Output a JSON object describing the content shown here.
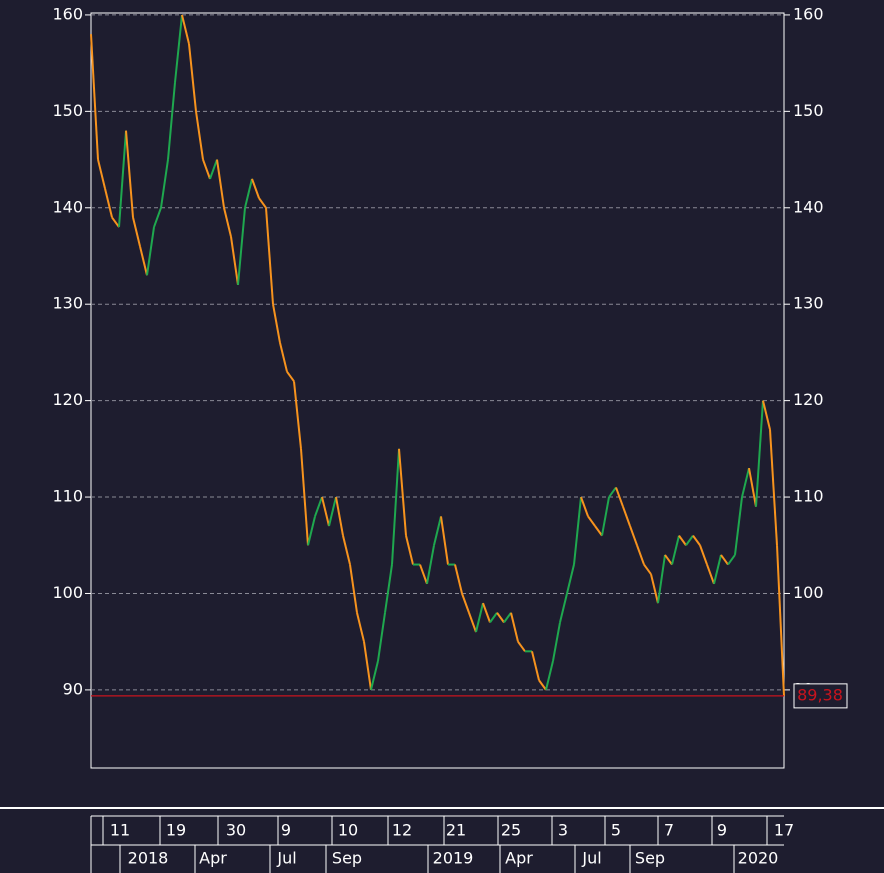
{
  "chart_data": {
    "type": "price-line",
    "values": [
      158,
      145,
      142,
      139,
      138,
      148,
      139,
      136,
      133,
      138,
      140,
      145,
      153,
      160,
      157,
      150,
      145,
      143,
      145,
      140,
      137,
      132,
      140,
      143,
      141,
      140,
      130,
      126,
      123,
      122,
      115,
      105,
      108,
      110,
      107,
      110,
      106,
      103,
      98,
      95,
      90,
      93,
      98,
      103,
      115,
      106,
      103,
      103,
      101,
      105,
      108,
      103,
      103,
      100,
      98,
      96,
      99,
      97,
      98,
      97,
      98,
      95,
      94,
      94,
      91,
      90,
      93,
      97,
      100,
      103,
      110,
      108,
      107,
      106,
      110,
      111,
      109,
      107,
      105,
      103,
      102,
      99,
      104,
      103,
      106,
      105,
      106,
      105,
      103,
      101,
      104,
      103,
      104,
      110,
      113,
      109,
      120,
      117,
      105,
      89.38
    ],
    "last_value_label": "89,38",
    "up_color": "#1fa84f",
    "down_color": "#f7931e",
    "last_line_color": "#c8141e",
    "ylim": [
      81.9,
      160.2
    ],
    "yticks": [
      90,
      100,
      110,
      120,
      130,
      140,
      150,
      160
    ],
    "grid": true,
    "time_axis": {
      "row1": [
        "11",
        "19",
        "30",
        "9",
        "10",
        "12",
        "21",
        "25",
        "3",
        "5",
        "7",
        "9",
        "17"
      ],
      "row2": [
        "2018",
        "Apr",
        "Jul",
        "Sep",
        "2019",
        "Apr",
        "Jul",
        "Sep",
        "2020"
      ]
    }
  }
}
